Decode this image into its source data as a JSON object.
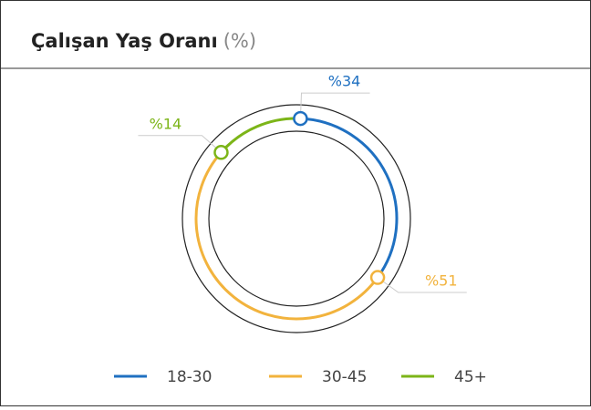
{
  "chart_data": {
    "type": "donut",
    "title": "Çalışan Yaş Oranı",
    "title_unit": "(%)",
    "categories": [
      "18-30",
      "30-45",
      "45+"
    ],
    "values": [
      34,
      51,
      14
    ],
    "value_labels": [
      "%34",
      "%51",
      "%14"
    ],
    "colors": [
      "#1f70c1",
      "#f2b33d",
      "#7cb518"
    ],
    "legend": "bottom"
  }
}
